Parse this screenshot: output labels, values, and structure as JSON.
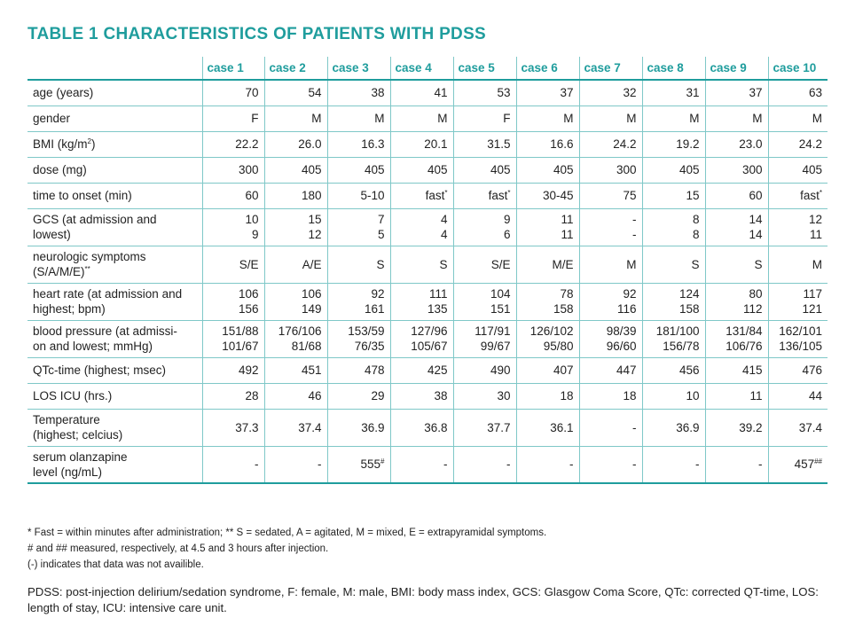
{
  "title": "TABLE 1  CHARACTERISTICS OF PATIENTS WITH PDSS",
  "columns": [
    "case 1",
    "case 2",
    "case 3",
    "case 4",
    "case 5",
    "case 6",
    "case 7",
    "case 8",
    "case 9",
    "case 10"
  ],
  "rows": [
    {
      "label": [
        "age (years)"
      ],
      "values": [
        [
          "70"
        ],
        [
          "54"
        ],
        [
          "38"
        ],
        [
          "41"
        ],
        [
          "53"
        ],
        [
          "37"
        ],
        [
          "32"
        ],
        [
          "31"
        ],
        [
          "37"
        ],
        [
          "63"
        ]
      ]
    },
    {
      "label": [
        "gender"
      ],
      "values": [
        [
          "F"
        ],
        [
          "M"
        ],
        [
          "M"
        ],
        [
          "M"
        ],
        [
          "F"
        ],
        [
          "M"
        ],
        [
          "M"
        ],
        [
          "M"
        ],
        [
          "M"
        ],
        [
          "M"
        ]
      ]
    },
    {
      "label": [
        "BMI (kg/m",
        "2",
        ")"
      ],
      "values": [
        [
          "22.2"
        ],
        [
          "26.0"
        ],
        [
          "16.3"
        ],
        [
          "20.1"
        ],
        [
          "31.5"
        ],
        [
          "16.6"
        ],
        [
          "24.2"
        ],
        [
          "19.2"
        ],
        [
          "23.0"
        ],
        [
          "24.2"
        ]
      ]
    },
    {
      "label": [
        "dose (mg)"
      ],
      "values": [
        [
          "300"
        ],
        [
          "405"
        ],
        [
          "405"
        ],
        [
          "405"
        ],
        [
          "405"
        ],
        [
          "405"
        ],
        [
          "300"
        ],
        [
          "405"
        ],
        [
          "300"
        ],
        [
          "405"
        ]
      ]
    },
    {
      "label": [
        "time to onset (min)"
      ],
      "values": [
        [
          "60"
        ],
        [
          "180"
        ],
        [
          "5-10"
        ],
        [
          "fast",
          "*"
        ],
        [
          "fast",
          "*"
        ],
        [
          "30-45"
        ],
        [
          "75"
        ],
        [
          "15"
        ],
        [
          "60"
        ],
        [
          "fast",
          "*"
        ]
      ]
    },
    {
      "label": [
        "GCS (at admission and",
        "lowest)"
      ],
      "multiline": true,
      "values": [
        [
          "10",
          "9"
        ],
        [
          "15",
          "12"
        ],
        [
          "7",
          "5"
        ],
        [
          "4",
          "4"
        ],
        [
          "9",
          "6"
        ],
        [
          "11",
          "11"
        ],
        [
          "-",
          "-"
        ],
        [
          "8",
          "8"
        ],
        [
          "14",
          "14"
        ],
        [
          "12",
          "11"
        ]
      ]
    },
    {
      "label": [
        "neurologic symptoms",
        "(S/A/M/E)",
        "**"
      ],
      "multiline_sup": true,
      "values": [
        [
          "S/E"
        ],
        [
          "A/E"
        ],
        [
          "S"
        ],
        [
          "S"
        ],
        [
          "S/E"
        ],
        [
          "M/E"
        ],
        [
          "M"
        ],
        [
          "S"
        ],
        [
          "S"
        ],
        [
          "M"
        ]
      ]
    },
    {
      "label": [
        "heart rate (at admission and",
        "highest; bpm)"
      ],
      "multiline": true,
      "values": [
        [
          "106",
          "156"
        ],
        [
          "106",
          "149"
        ],
        [
          "92",
          "161"
        ],
        [
          "111",
          "135"
        ],
        [
          "104",
          "151"
        ],
        [
          "78",
          "158"
        ],
        [
          "92",
          "116"
        ],
        [
          "124",
          "158"
        ],
        [
          "80",
          "112"
        ],
        [
          "117",
          "121"
        ]
      ]
    },
    {
      "label": [
        "blood pressure (at admissi-",
        "on and lowest; mmHg)"
      ],
      "multiline": true,
      "values": [
        [
          "151/88",
          "101/67"
        ],
        [
          "176/106",
          "81/68"
        ],
        [
          "153/59",
          "76/35"
        ],
        [
          "127/96",
          "105/67"
        ],
        [
          "117/91",
          "99/67"
        ],
        [
          "126/102",
          "95/80"
        ],
        [
          "98/39",
          "96/60"
        ],
        [
          "181/100",
          "156/78"
        ],
        [
          "131/84",
          "106/76"
        ],
        [
          "162/101",
          "136/105"
        ]
      ]
    },
    {
      "label": [
        "QTc-time (highest; msec)"
      ],
      "values": [
        [
          "492"
        ],
        [
          "451"
        ],
        [
          "478"
        ],
        [
          "425"
        ],
        [
          "490"
        ],
        [
          "407"
        ],
        [
          "447"
        ],
        [
          "456"
        ],
        [
          "415"
        ],
        [
          "476"
        ]
      ]
    },
    {
      "label": [
        "LOS ICU (hrs.)"
      ],
      "values": [
        [
          "28"
        ],
        [
          "46"
        ],
        [
          "29"
        ],
        [
          "38"
        ],
        [
          "30"
        ],
        [
          "18"
        ],
        [
          "18"
        ],
        [
          "10"
        ],
        [
          "11"
        ],
        [
          "44"
        ]
      ]
    },
    {
      "label": [
        "Temperature",
        "(highest; celcius)"
      ],
      "multiline": true,
      "values": [
        [
          "37.3"
        ],
        [
          "37.4"
        ],
        [
          "36.9"
        ],
        [
          "36.8"
        ],
        [
          "37.7"
        ],
        [
          "36.1"
        ],
        [
          "-"
        ],
        [
          "36.9"
        ],
        [
          "39.2"
        ],
        [
          "37.4"
        ]
      ]
    },
    {
      "label": [
        "serum olanzapine",
        "level (ng/mL)"
      ],
      "multiline": true,
      "values": [
        [
          "-"
        ],
        [
          "-"
        ],
        [
          "555",
          "#"
        ],
        [
          "-"
        ],
        [
          "-"
        ],
        [
          "-"
        ],
        [
          "-"
        ],
        [
          "-"
        ],
        [
          "-"
        ],
        [
          "457",
          "##"
        ]
      ]
    }
  ],
  "notes": [
    "* Fast = within minutes after administration; ** S = sedated, A = agitated, M = mixed, E = extrapyramidal symptoms.",
    "# and ## measured, respectively, at 4.5 and 3 hours after injection.",
    "(-) indicates that data was not availible."
  ],
  "abbreviations": "PDSS: post-injection delirium/sedation syndrome, F: female, M: male, BMI: body mass index, GCS: Glasgow Coma Score, QTc: corrected QT-time, LOS: length of stay, ICU: intensive care unit.",
  "colors": {
    "accent": "#1f9d9d",
    "rule": "#7fc8c8",
    "text": "#222222"
  }
}
